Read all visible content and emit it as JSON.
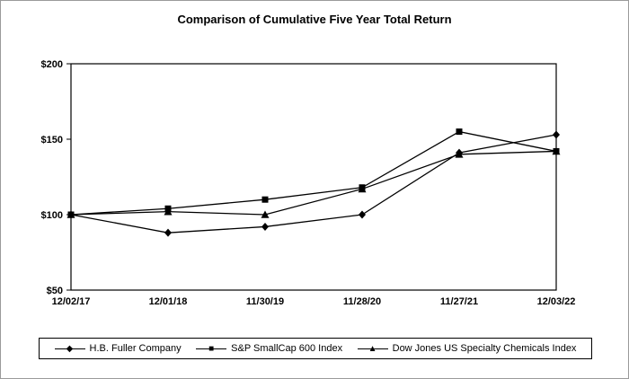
{
  "page": {
    "title": "Comparison of Cumulative Five Year Total Return"
  },
  "chart_data": {
    "type": "line",
    "title": "Comparison of Cumulative Five Year Total Return",
    "x_labels": [
      "12/02/17",
      "12/01/18",
      "11/30/19",
      "11/28/20",
      "11/27/21",
      "12/03/22"
    ],
    "y_ticks": [
      50,
      100,
      150,
      200
    ],
    "y_tick_labels": [
      "$50",
      "$100",
      "$150",
      "$200"
    ],
    "ylim": [
      50,
      200
    ],
    "grid": false,
    "legend_position": "bottom",
    "line_color": "#000000",
    "series": [
      {
        "name": "H.B. Fuller Company",
        "marker": "diamond",
        "values": [
          100,
          88,
          92,
          100,
          141,
          153
        ]
      },
      {
        "name": "S&P SmallCap 600 Index",
        "marker": "square",
        "values": [
          100,
          104,
          110,
          118,
          155,
          142
        ]
      },
      {
        "name": "Dow Jones US Specialty Chemicals Index",
        "marker": "triangle",
        "values": [
          100,
          102,
          100,
          117,
          140,
          142
        ]
      }
    ]
  },
  "legend": {
    "items": [
      {
        "label": "H.B. Fuller Company",
        "marker": "diamond",
        "glyph": "◆"
      },
      {
        "label": "S&P SmallCap 600 Index",
        "marker": "square",
        "glyph": "■"
      },
      {
        "label": "Dow Jones US Specialty Chemicals Index",
        "marker": "triangle",
        "glyph": "▲"
      }
    ]
  }
}
